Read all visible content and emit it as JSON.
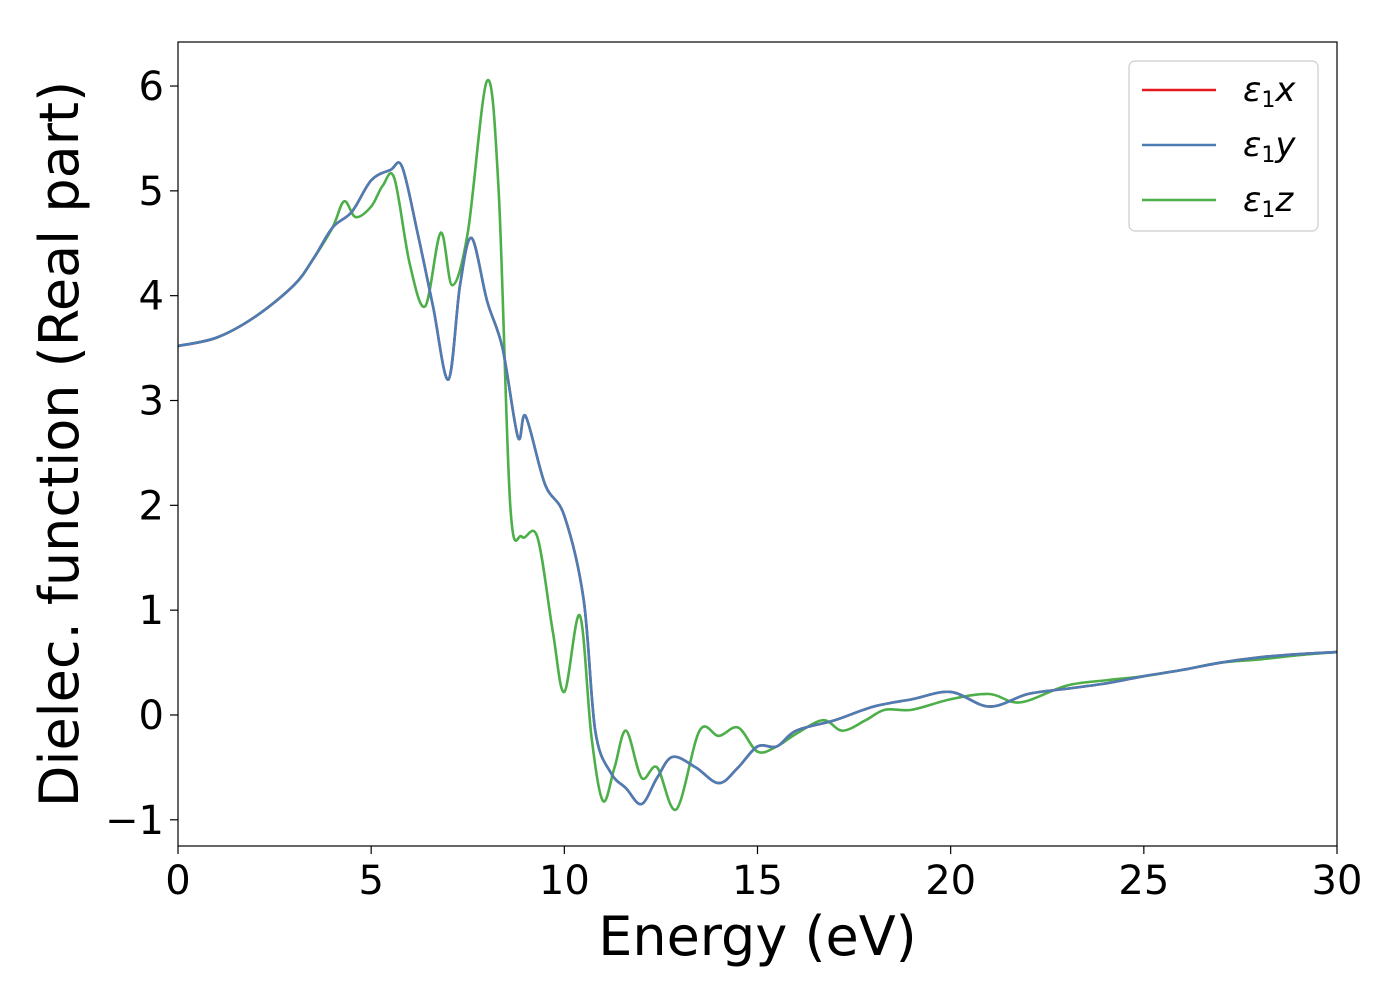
{
  "chart_data": {
    "type": "line",
    "title": "",
    "xlabel": "Energy (eV)",
    "ylabel": "Dielec. function (Real part)",
    "xlim": [
      0,
      30
    ],
    "ylim": [
      -1.25,
      6.42
    ],
    "xticks": [
      0,
      5,
      10,
      15,
      20,
      25,
      30
    ],
    "xtick_labels": [
      "0",
      "5",
      "10",
      "15",
      "20",
      "25",
      "30"
    ],
    "yticks": [
      -1,
      0,
      1,
      2,
      3,
      4,
      5,
      6
    ],
    "ytick_labels": [
      "−1",
      "0",
      "1",
      "2",
      "3",
      "4",
      "5",
      "6"
    ],
    "grid": false,
    "legend_position": "top-right",
    "series": [
      {
        "name": "ε1x",
        "legend_main": "ε",
        "legend_sub": "1",
        "legend_tail": "x",
        "color": "#e41a1c",
        "x": [
          0,
          1,
          2,
          3,
          3.5,
          4,
          4.5,
          5,
          5.5,
          5.8,
          6.2,
          6.6,
          7.0,
          7.3,
          7.6,
          8.0,
          8.4,
          8.8,
          9.0,
          9.5,
          10.0,
          10.5,
          10.8,
          11.2,
          11.6,
          12.0,
          12.4,
          12.8,
          13.4,
          14.0,
          14.5,
          15.0,
          15.5,
          16.0,
          17.0,
          18.0,
          19.0,
          20.0,
          21.0,
          22.0,
          23.0,
          24.0,
          25.0,
          26.0,
          27.0,
          28.0,
          29.0,
          30.0
        ],
        "y": [
          3.52,
          3.6,
          3.8,
          4.1,
          4.35,
          4.65,
          4.8,
          5.1,
          5.2,
          5.23,
          4.6,
          3.9,
          3.2,
          4.1,
          4.55,
          3.95,
          3.5,
          2.65,
          2.85,
          2.2,
          1.9,
          1.1,
          -0.15,
          -0.55,
          -0.7,
          -0.85,
          -0.6,
          -0.4,
          -0.5,
          -0.65,
          -0.5,
          -0.3,
          -0.3,
          -0.15,
          -0.05,
          0.08,
          0.15,
          0.22,
          0.08,
          0.2,
          0.25,
          0.3,
          0.37,
          0.43,
          0.5,
          0.55,
          0.58,
          0.6
        ]
      },
      {
        "name": "ε1y",
        "legend_main": "ε",
        "legend_sub": "1",
        "legend_tail": "y",
        "color": "#4a7eb5",
        "x": [
          0,
          1,
          2,
          3,
          3.5,
          4,
          4.5,
          5,
          5.5,
          5.8,
          6.2,
          6.6,
          7.0,
          7.3,
          7.6,
          8.0,
          8.4,
          8.8,
          9.0,
          9.5,
          10.0,
          10.5,
          10.8,
          11.2,
          11.6,
          12.0,
          12.4,
          12.8,
          13.4,
          14.0,
          14.5,
          15.0,
          15.5,
          16.0,
          17.0,
          18.0,
          19.0,
          20.0,
          21.0,
          22.0,
          23.0,
          24.0,
          25.0,
          26.0,
          27.0,
          28.0,
          29.0,
          30.0
        ],
        "y": [
          3.52,
          3.6,
          3.8,
          4.1,
          4.35,
          4.65,
          4.8,
          5.1,
          5.2,
          5.23,
          4.6,
          3.9,
          3.2,
          4.1,
          4.55,
          3.95,
          3.5,
          2.65,
          2.85,
          2.2,
          1.9,
          1.1,
          -0.15,
          -0.55,
          -0.7,
          -0.85,
          -0.6,
          -0.4,
          -0.5,
          -0.65,
          -0.5,
          -0.3,
          -0.3,
          -0.15,
          -0.05,
          0.08,
          0.15,
          0.22,
          0.08,
          0.2,
          0.25,
          0.3,
          0.37,
          0.43,
          0.5,
          0.55,
          0.58,
          0.6
        ]
      },
      {
        "name": "ε1z",
        "legend_main": "ε",
        "legend_sub": "1",
        "legend_tail": "z",
        "color": "#4daf4a",
        "x": [
          0,
          1,
          2,
          3,
          3.5,
          4,
          4.3,
          4.6,
          5.0,
          5.3,
          5.6,
          6.0,
          6.4,
          6.8,
          7.1,
          7.5,
          8.0,
          8.3,
          8.6,
          8.9,
          9.3,
          9.7,
          10.0,
          10.4,
          10.7,
          11.0,
          11.3,
          11.6,
          12.0,
          12.4,
          12.9,
          13.5,
          14.0,
          14.5,
          15.0,
          15.5,
          16.0,
          16.7,
          17.2,
          17.8,
          18.3,
          19.0,
          20.0,
          21.0,
          21.8,
          23.0,
          24.0,
          25.0,
          26.0,
          27.0,
          28.0,
          29.0,
          30.0
        ],
        "y": [
          3.52,
          3.6,
          3.8,
          4.1,
          4.35,
          4.65,
          4.9,
          4.75,
          4.85,
          5.05,
          5.12,
          4.3,
          3.9,
          4.6,
          4.1,
          4.6,
          6.05,
          5.0,
          2.0,
          1.7,
          1.7,
          0.8,
          0.22,
          0.95,
          -0.2,
          -0.82,
          -0.5,
          -0.15,
          -0.6,
          -0.5,
          -0.9,
          -0.15,
          -0.2,
          -0.12,
          -0.35,
          -0.3,
          -0.18,
          -0.05,
          -0.15,
          -0.05,
          0.05,
          0.05,
          0.15,
          0.2,
          0.12,
          0.28,
          0.33,
          0.37,
          0.43,
          0.5,
          0.53,
          0.57,
          0.6
        ]
      }
    ]
  }
}
